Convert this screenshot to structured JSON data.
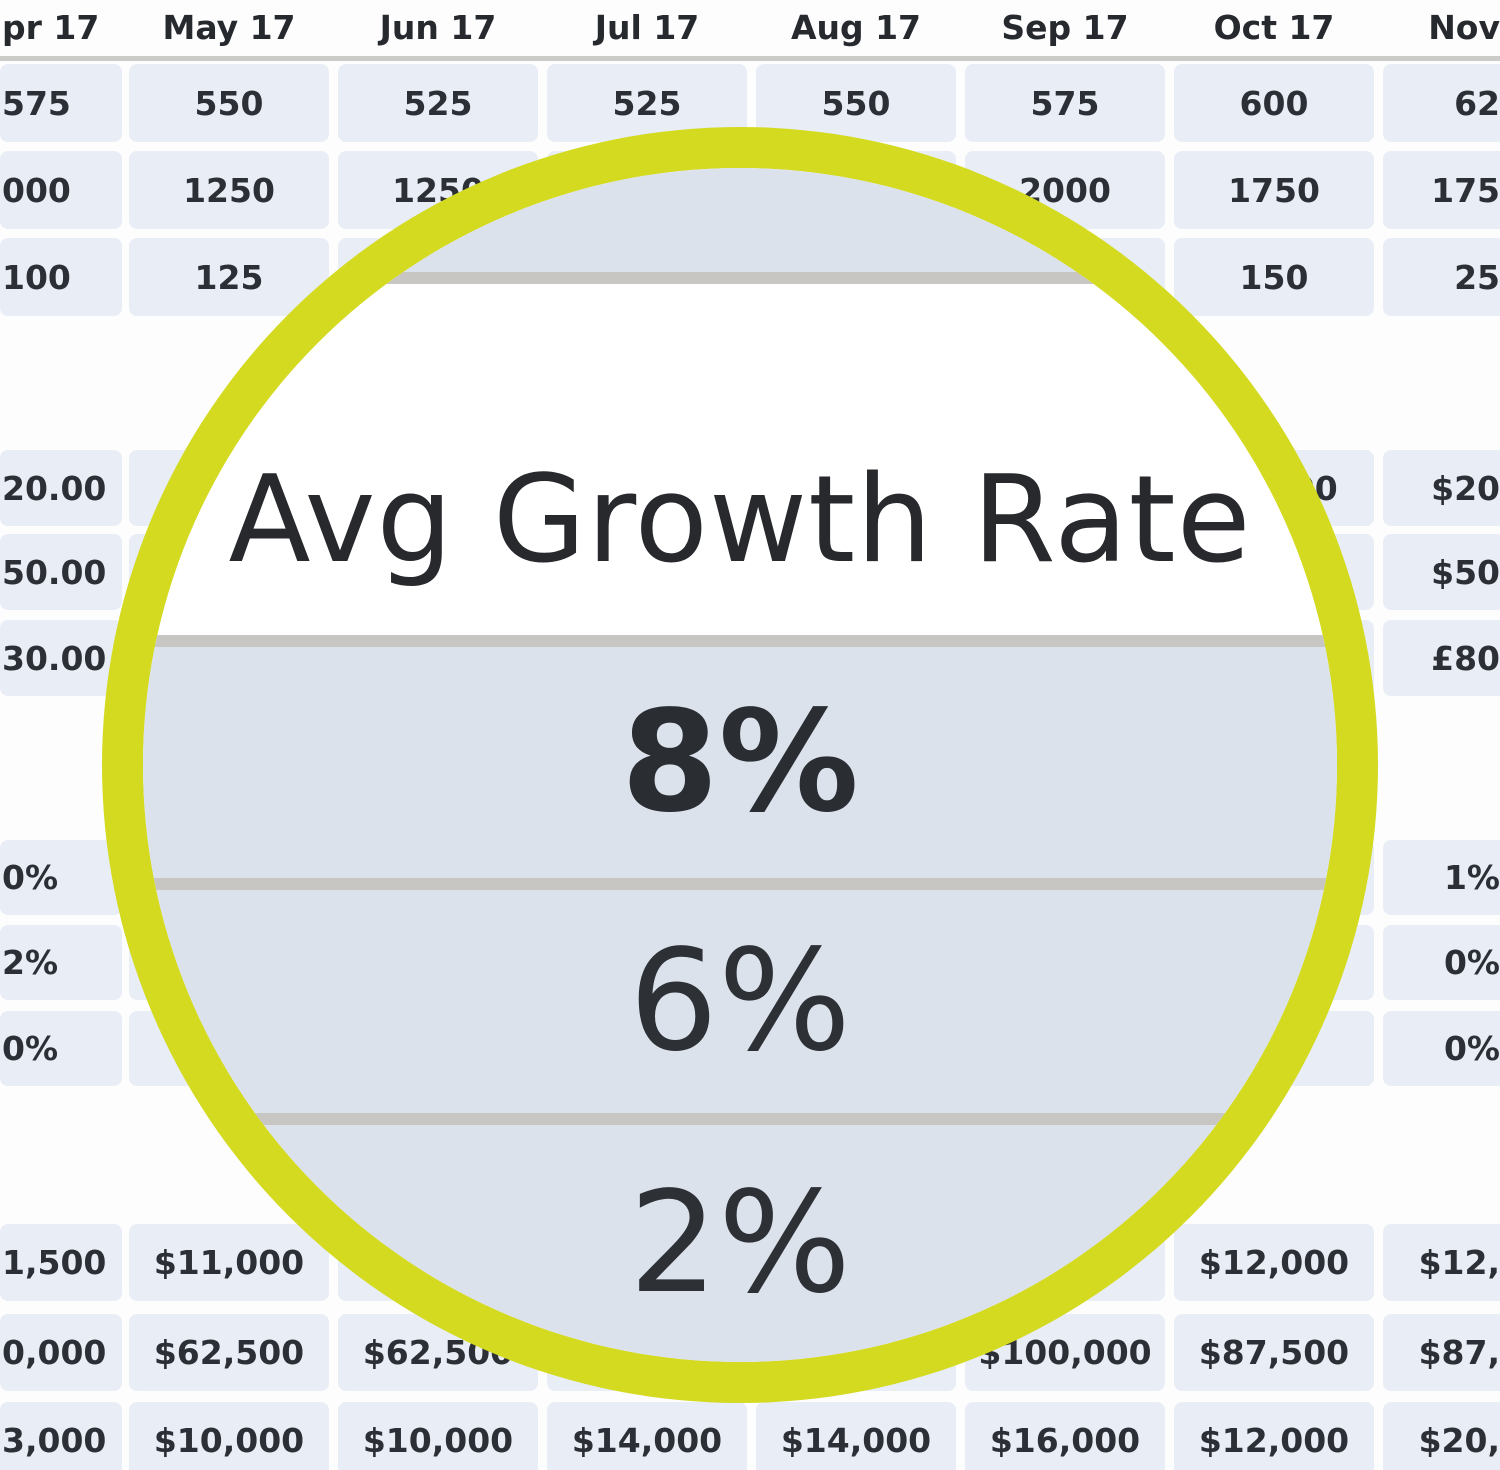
{
  "table": {
    "columns": [
      "pr 17",
      "May 17",
      "Jun 17",
      "Jul 17",
      "Aug 17",
      "Sep 17",
      "Oct 17",
      "Nov"
    ],
    "rows": [
      {
        "cells": [
          "575",
          "550",
          "525",
          "525",
          "550",
          "575",
          "600",
          "62"
        ]
      },
      {
        "cells": [
          "000",
          "1250",
          "1250",
          "",
          "",
          "2000",
          "1750",
          "175"
        ]
      },
      {
        "cells": [
          "100",
          "125",
          "",
          "",
          "",
          "",
          "150",
          "25"
        ]
      },
      {
        "cells": [
          "20.00",
          "",
          "",
          "",
          "",
          "",
          "$20.00",
          "$20"
        ]
      },
      {
        "cells": [
          "50.00",
          "",
          "",
          "",
          "",
          "",
          "",
          "$50"
        ]
      },
      {
        "cells": [
          "30.00",
          "",
          "",
          "",
          "",
          "",
          "",
          "£80"
        ]
      },
      {
        "cells": [
          "0%",
          "",
          "",
          "",
          "",
          "",
          "",
          "1%"
        ]
      },
      {
        "cells": [
          "2%",
          "",
          "",
          "",
          "",
          "",
          "",
          "0%"
        ]
      },
      {
        "cells": [
          "0%",
          "",
          "",
          "",
          "",
          "",
          "",
          "0%"
        ]
      },
      {
        "cells": [
          "1,500",
          "$11,000",
          "",
          "",
          "",
          "",
          "$12,000",
          "$12,"
        ]
      },
      {
        "cells": [
          "0,000",
          "$62,500",
          "$62,500",
          "",
          "",
          "$100,000",
          "$87,500",
          "$87,"
        ]
      },
      {
        "cells": [
          "3,000",
          "$10,000",
          "$10,000",
          "$14,000",
          "$14,000",
          "$16,000",
          "$12,000",
          "$20,"
        ]
      }
    ]
  },
  "magnifier": {
    "title": "Avg Growth Rate",
    "values": [
      "8%",
      "6%",
      "2%"
    ],
    "ring_color": "#d3da20"
  }
}
